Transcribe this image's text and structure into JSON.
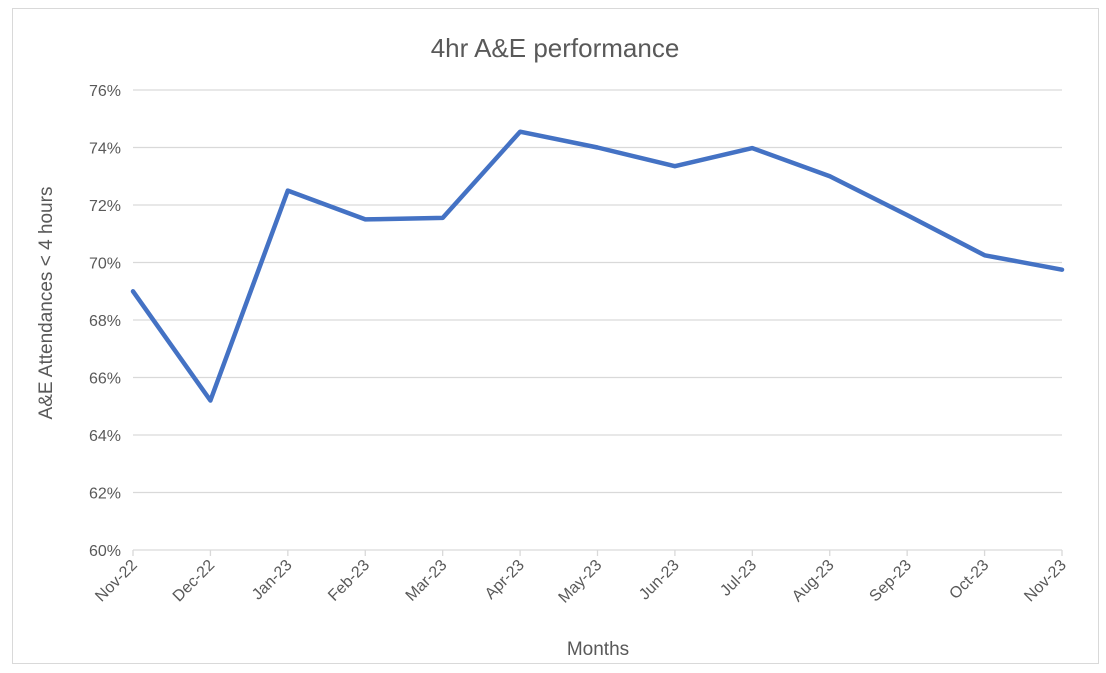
{
  "chart_data": {
    "type": "line",
    "title": "4hr A&E performance",
    "xlabel": "Months",
    "ylabel": "A&E Attendances < 4 hours",
    "categories": [
      "Nov-22",
      "Dec-22",
      "Jan-23",
      "Feb-23",
      "Mar-23",
      "Apr-23",
      "May-23",
      "Jun-23",
      "Jul-23",
      "Aug-23",
      "Sep-23",
      "Oct-23",
      "Nov-23"
    ],
    "series": [
      {
        "values": [
          69.0,
          65.2,
          72.5,
          71.5,
          71.55,
          74.55,
          74.0,
          73.35,
          73.98,
          73.0,
          71.65,
          70.25,
          69.75
        ]
      }
    ],
    "ylim": [
      60,
      76
    ],
    "yticks": [
      60,
      62,
      64,
      66,
      68,
      70,
      72,
      74,
      76
    ],
    "ytick_format": "percent",
    "grid": true,
    "legend": "none",
    "series_color": "#4472c4"
  }
}
